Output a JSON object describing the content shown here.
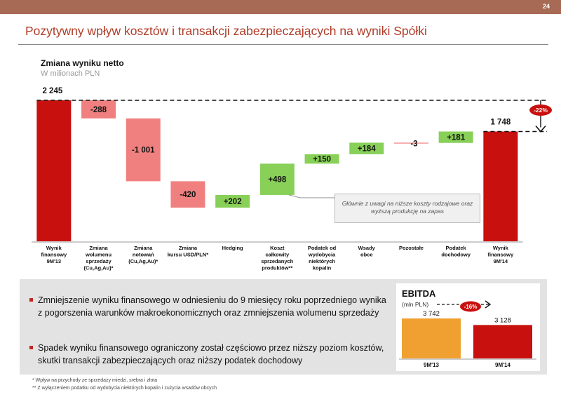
{
  "header": {
    "page_number": "24"
  },
  "title": "Pozytywny wpływ kosztów i transakcji zabezpieczających na wyniki Spółki",
  "chart_data": [
    {
      "type": "waterfall",
      "title": "Zmiana wyniku netto",
      "subtitle": "W milionach PLN",
      "categories": [
        "Wynik finansowy 9M'13",
        "Zmiana wolumenu sprzedaży (Cu,Ag,Au)*",
        "Zmiana notowań (Cu,Ag,Au)*",
        "Zmiana kursu USD/PLN*",
        "Hedging",
        "Koszt całkowity sprzedanych produktów**",
        "Podatek od wydobycia niektórych kopalin",
        "Wsady obce",
        "Pozostałe",
        "Podatek dochodowy",
        "Wynik finansowy 9M'14"
      ],
      "category_lines": [
        [
          "Wynik",
          "finansowy",
          "9M'13"
        ],
        [
          "Zmiana",
          "wolumenu",
          "sprzedaży",
          "(Cu,Ag,Au)*"
        ],
        [
          "Zmiana",
          "notowań",
          "(Cu,Ag,Au)*"
        ],
        [
          "Zmiana",
          "kursu USD/PLN*"
        ],
        [
          "Hedging"
        ],
        [
          "Koszt",
          "całkowity",
          "sprzedanych",
          "produktów**"
        ],
        [
          "Podatek od",
          "wydobycia",
          "niektórych",
          "kopalin"
        ],
        [
          "Wsady",
          "obce"
        ],
        [
          "Pozostałe"
        ],
        [
          "Podatek",
          "dochodowy"
        ],
        [
          "Wynik",
          "finansowy",
          "9M'14"
        ]
      ],
      "values": [
        2245,
        -288,
        -1001,
        -420,
        202,
        498,
        150,
        184,
        -3,
        181,
        1748
      ],
      "kinds": [
        "total",
        "delta",
        "delta",
        "delta",
        "delta",
        "delta",
        "delta",
        "delta",
        "delta",
        "delta",
        "total"
      ],
      "labels": [
        "2 245",
        "-288",
        "-1 001",
        "-420",
        "+202",
        "+498",
        "+150",
        "+184",
        "-3",
        "+181",
        "1 748"
      ],
      "change_badge": "-22%",
      "annotation": "Głównie z uwagi na niższe koszty rodzajowe oraz wyższą produkcję na zapas",
      "colors": {
        "total": "#c8100e",
        "negative": "#f08080",
        "positive": "#88d058"
      },
      "ylim": [
        0,
        2245
      ]
    },
    {
      "type": "bar",
      "title": "EBITDA",
      "subtitle": "(mln PLN)",
      "categories": [
        "9M'13",
        "9M'14"
      ],
      "values": [
        3742,
        3128
      ],
      "labels": [
        "3 742",
        "3 128"
      ],
      "change_badge": "-16%",
      "colors": [
        "#f0a030",
        "#c8100e"
      ],
      "ylim": [
        0,
        3742
      ]
    }
  ],
  "bullets": [
    "Zmniejszenie wyniku finansowego w odniesieniu do 9 miesięcy roku poprzedniego wynika z pogorszenia warunków makroekonomicznych oraz zmniejszenia wolumenu sprzedaży",
    "Spadek wyniku finansowego ograniczony został częściowo przez niższy poziom kosztów, skutki transakcji zabezpieczających oraz niższy podatek dochodowy"
  ],
  "footnotes": [
    "* Wpływ na przychody ze sprzedaży miedzi, srebra i złota",
    "** Z wyłączeniem podatku od wydobycia niektórych kopalin i zużycia wsadów obcych"
  ]
}
